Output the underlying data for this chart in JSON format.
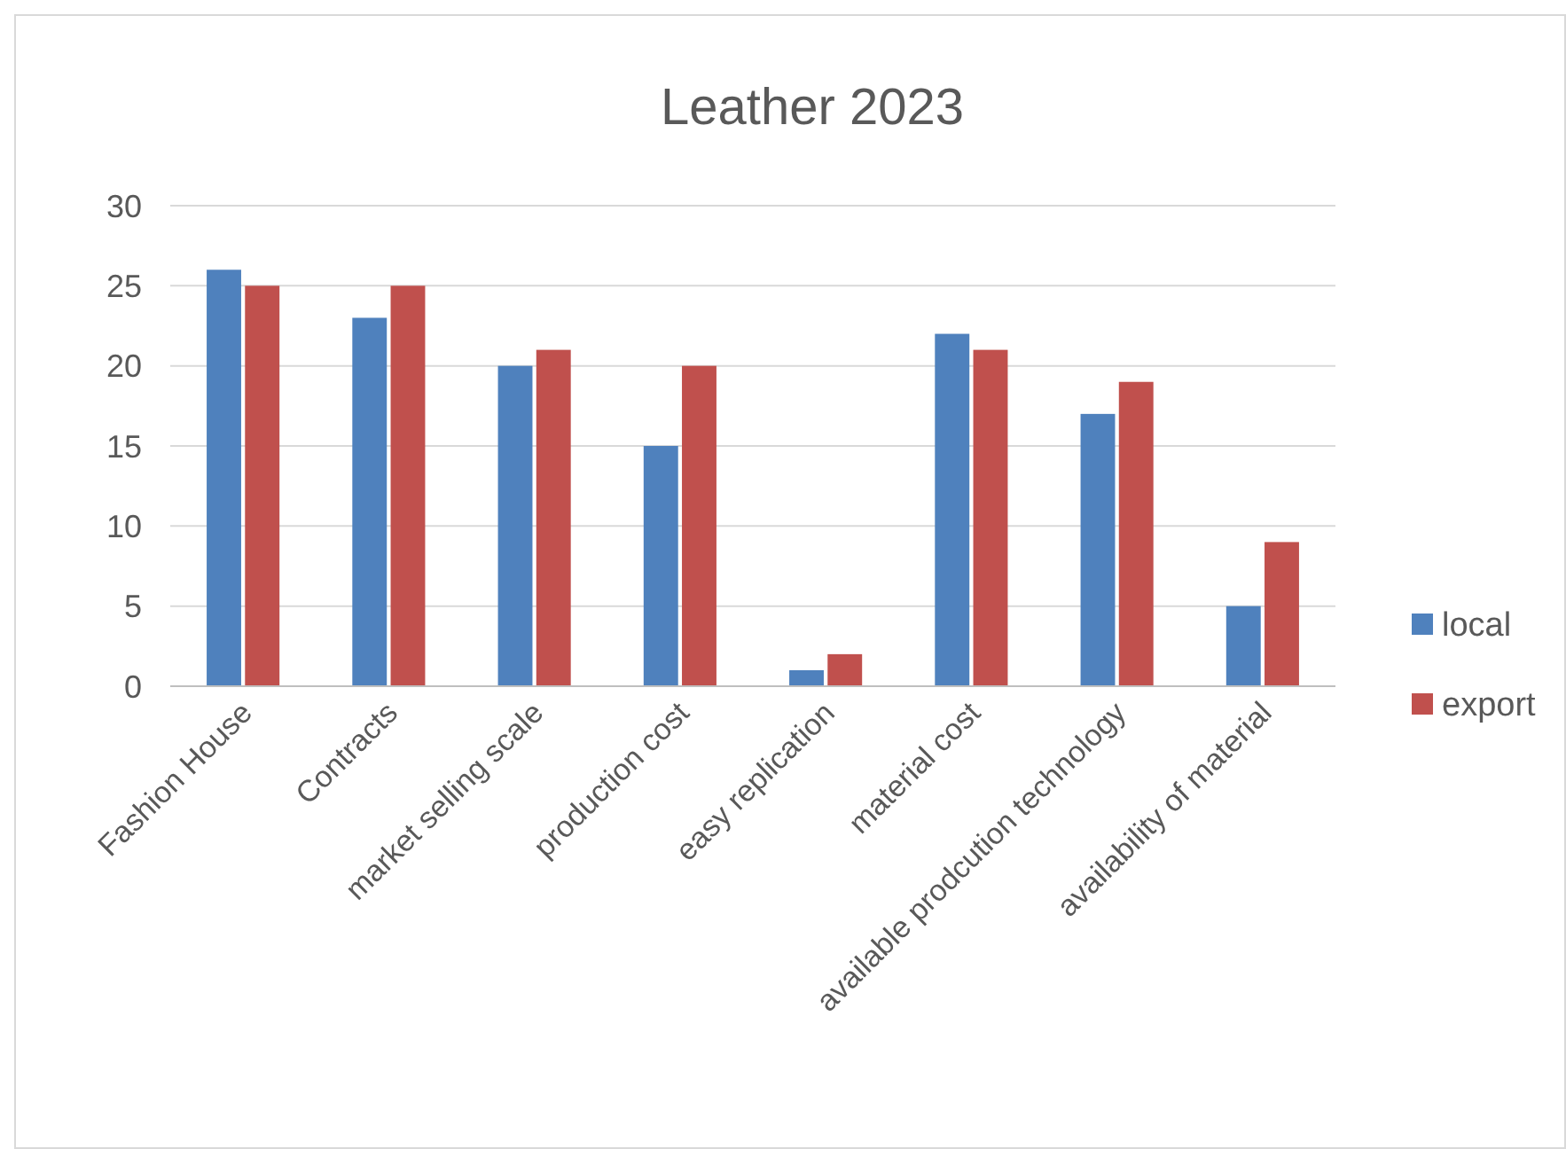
{
  "chart_data": {
    "type": "bar",
    "title": "Leather 2023",
    "categories": [
      "Fashion House",
      "Contracts",
      "market selling scale",
      "production cost",
      "easy replication",
      "material cost",
      "available prodcution technology",
      "availability of material"
    ],
    "series": [
      {
        "name": "local",
        "color": "#4f81bd",
        "values": [
          26,
          23,
          20,
          15,
          1,
          22,
          17,
          5
        ]
      },
      {
        "name": "export",
        "color": "#c0504d",
        "values": [
          25,
          25,
          21,
          20,
          2,
          21,
          19,
          9
        ]
      }
    ],
    "ylim": [
      0,
      30
    ],
    "yticks": [
      0,
      5,
      10,
      15,
      20,
      25,
      30
    ],
    "grid": "y",
    "legend": "right"
  }
}
